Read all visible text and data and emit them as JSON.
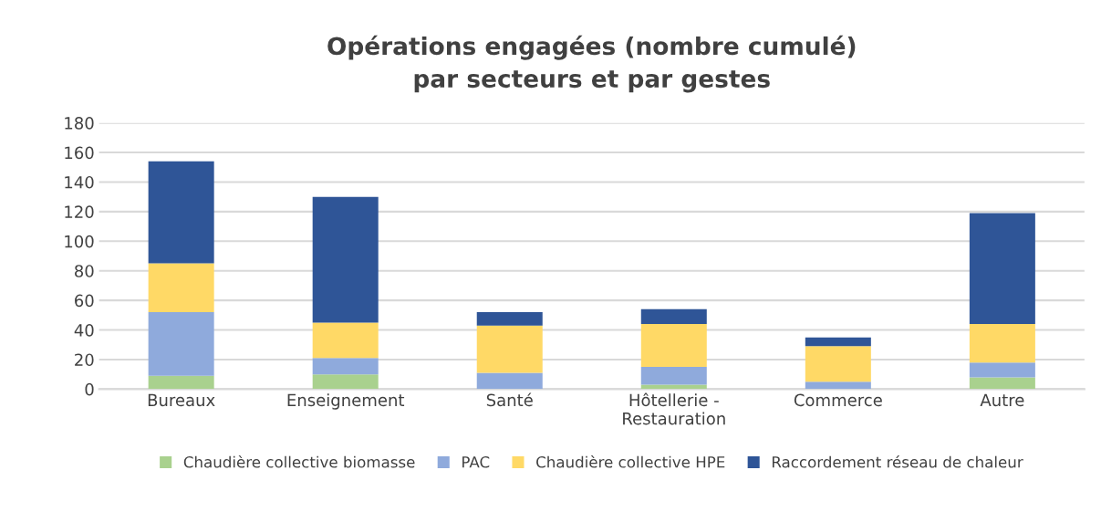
{
  "chart_data": {
    "type": "bar",
    "title": "Opérations engagées (nombre cumulé)\npar secteurs et par gestes",
    "categories": [
      "Bureaux",
      "Enseignement",
      "Santé",
      "Hôtellerie -\nRestauration",
      "Commerce",
      "Autre"
    ],
    "stacked": true,
    "series": [
      {
        "name": "Chaudière collective biomasse",
        "color": "#a9d18e",
        "values": [
          9,
          10,
          0,
          3,
          0,
          8
        ]
      },
      {
        "name": "PAC",
        "color": "#8faadc",
        "values": [
          43,
          11,
          11,
          12,
          5,
          10
        ]
      },
      {
        "name": "Chaudière collective HPE",
        "color": "#ffd966",
        "values": [
          33,
          24,
          32,
          29,
          24,
          26
        ]
      },
      {
        "name": "Raccordement réseau de chaleur",
        "color": "#2f5597",
        "values": [
          69,
          85,
          9,
          10,
          6,
          75
        ]
      }
    ],
    "ylim": [
      0,
      180
    ],
    "yticks": [
      0,
      20,
      40,
      60,
      80,
      100,
      120,
      140,
      160,
      180
    ],
    "grid": "y",
    "legend": "bottom"
  }
}
